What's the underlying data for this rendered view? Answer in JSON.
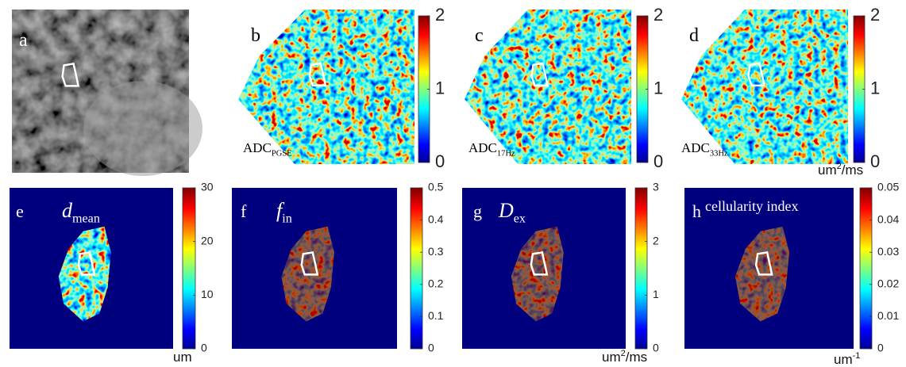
{
  "panels": [
    {
      "letter": "a"
    },
    {
      "letter": "b",
      "label": {
        "main": "ADC",
        "sub": "PGSE"
      },
      "colorbar": {
        "range": [
          0,
          2
        ],
        "ticks": [
          0,
          1,
          2
        ]
      }
    },
    {
      "letter": "c",
      "label": {
        "main": "ADC",
        "sub": "17Hz"
      },
      "colorbar": {
        "range": [
          0,
          2
        ],
        "ticks": [
          0,
          1,
          2
        ]
      }
    },
    {
      "letter": "d",
      "label": {
        "main": "ADC",
        "sub": "33Hz"
      },
      "colorbar": {
        "range": [
          0,
          2
        ],
        "ticks": [
          0,
          1,
          2
        ]
      },
      "unit": {
        "main": "um",
        "sup": "2",
        "rest": "/ms"
      }
    },
    {
      "letter": "e",
      "label": {
        "main": "d",
        "sub": "mean"
      },
      "colorbar": {
        "range": [
          0,
          30
        ],
        "ticks": [
          0,
          10,
          20,
          30
        ]
      },
      "unit": {
        "main": "um"
      }
    },
    {
      "letter": "f",
      "label": {
        "main": "f",
        "sub": "in"
      },
      "colorbar": {
        "range": [
          0,
          0.5
        ],
        "ticks": [
          0,
          0.1,
          0.2,
          0.3,
          0.4,
          0.5
        ]
      }
    },
    {
      "letter": "g",
      "label": {
        "main": "D",
        "sub": "ex"
      },
      "colorbar": {
        "range": [
          0,
          3
        ],
        "ticks": [
          0,
          1,
          2,
          3
        ]
      },
      "unit": {
        "main": "um",
        "sup": "2",
        "rest": "/ms"
      }
    },
    {
      "letter": "h",
      "label": {
        "main": "cellularity index"
      },
      "colorbar": {
        "range": [
          0,
          0.05
        ],
        "ticks": [
          0,
          0.01,
          0.02,
          0.03,
          0.04,
          0.05
        ]
      },
      "unit": {
        "main": "um",
        "sup": "-1"
      }
    }
  ]
}
